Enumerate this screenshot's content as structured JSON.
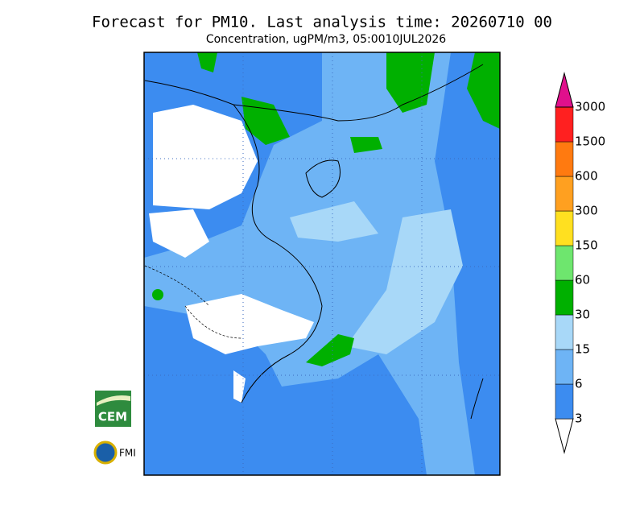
{
  "header": {
    "title": "Forecast for PM10. Last analysis time: 20260710 00",
    "subtitle": "Concentration, ugPM/m3, 05:0010JUL2026"
  },
  "colorbar": {
    "levels": [
      3,
      6,
      15,
      30,
      60,
      150,
      300,
      600,
      1500,
      3000
    ],
    "colors": [
      "#ffffff",
      "#3c8cf0",
      "#6eb4f5",
      "#a8d8f8",
      "#00b000",
      "#6ee66e",
      "#ffe020",
      "#ffa020",
      "#ff7a10",
      "#ff2020",
      "#e0108c"
    ]
  },
  "logos": {
    "left_top": "CEM",
    "left_bottom": "FMI"
  }
}
